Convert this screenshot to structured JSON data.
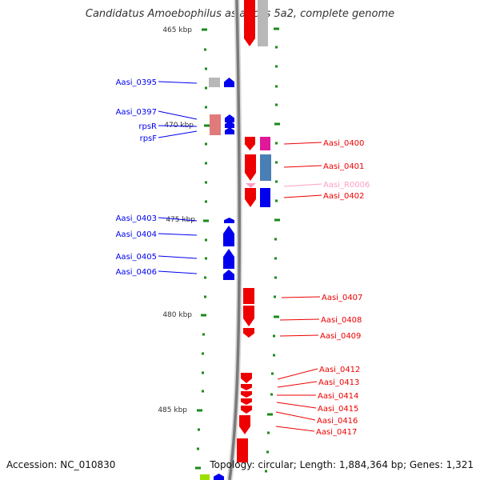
{
  "title": "Candidatus Amoebophilus asiaticus 5a2, complete genome",
  "footer": {
    "accession": "Accession: NC_010830",
    "topology": "Topology: circular; Length: 1,884,364 bp; Genes: 1,321"
  },
  "colors": {
    "backbone": "#7a7a7a",
    "tick": "#1a8a1a",
    "reverse_gene": "#0000ee",
    "forward_gene": "#ee0000",
    "rrna": "#ff9ec6",
    "grey_feature": "#b8b8b8",
    "magenta_feature": "#e0189a",
    "steel_feature": "#4a7fb5",
    "pink_feature": "#e07b7b",
    "light_green_feature": "#99e000"
  },
  "scale": {
    "unit": "kbp",
    "labels": [
      "465 kbp",
      "470 kbp",
      "475 kbp",
      "480 kbp",
      "485 kbp"
    ]
  },
  "labels_left": [
    "Aasi_0395",
    "Aasi_0397",
    "rpsR",
    "rpsF",
    "Aasi_0403",
    "Aasi_0404",
    "Aasi_0405",
    "Aasi_0406"
  ],
  "labels_right": [
    "Aasi_0400",
    "Aasi_0401",
    "Aasi_R0006",
    "Aasi_0402",
    "Aasi_0407",
    "Aasi_0408",
    "Aasi_0409",
    "Aasi_0412",
    "Aasi_0413",
    "Aasi_0414",
    "Aasi_0415",
    "Aasi_0416",
    "Aasi_0417"
  ]
}
